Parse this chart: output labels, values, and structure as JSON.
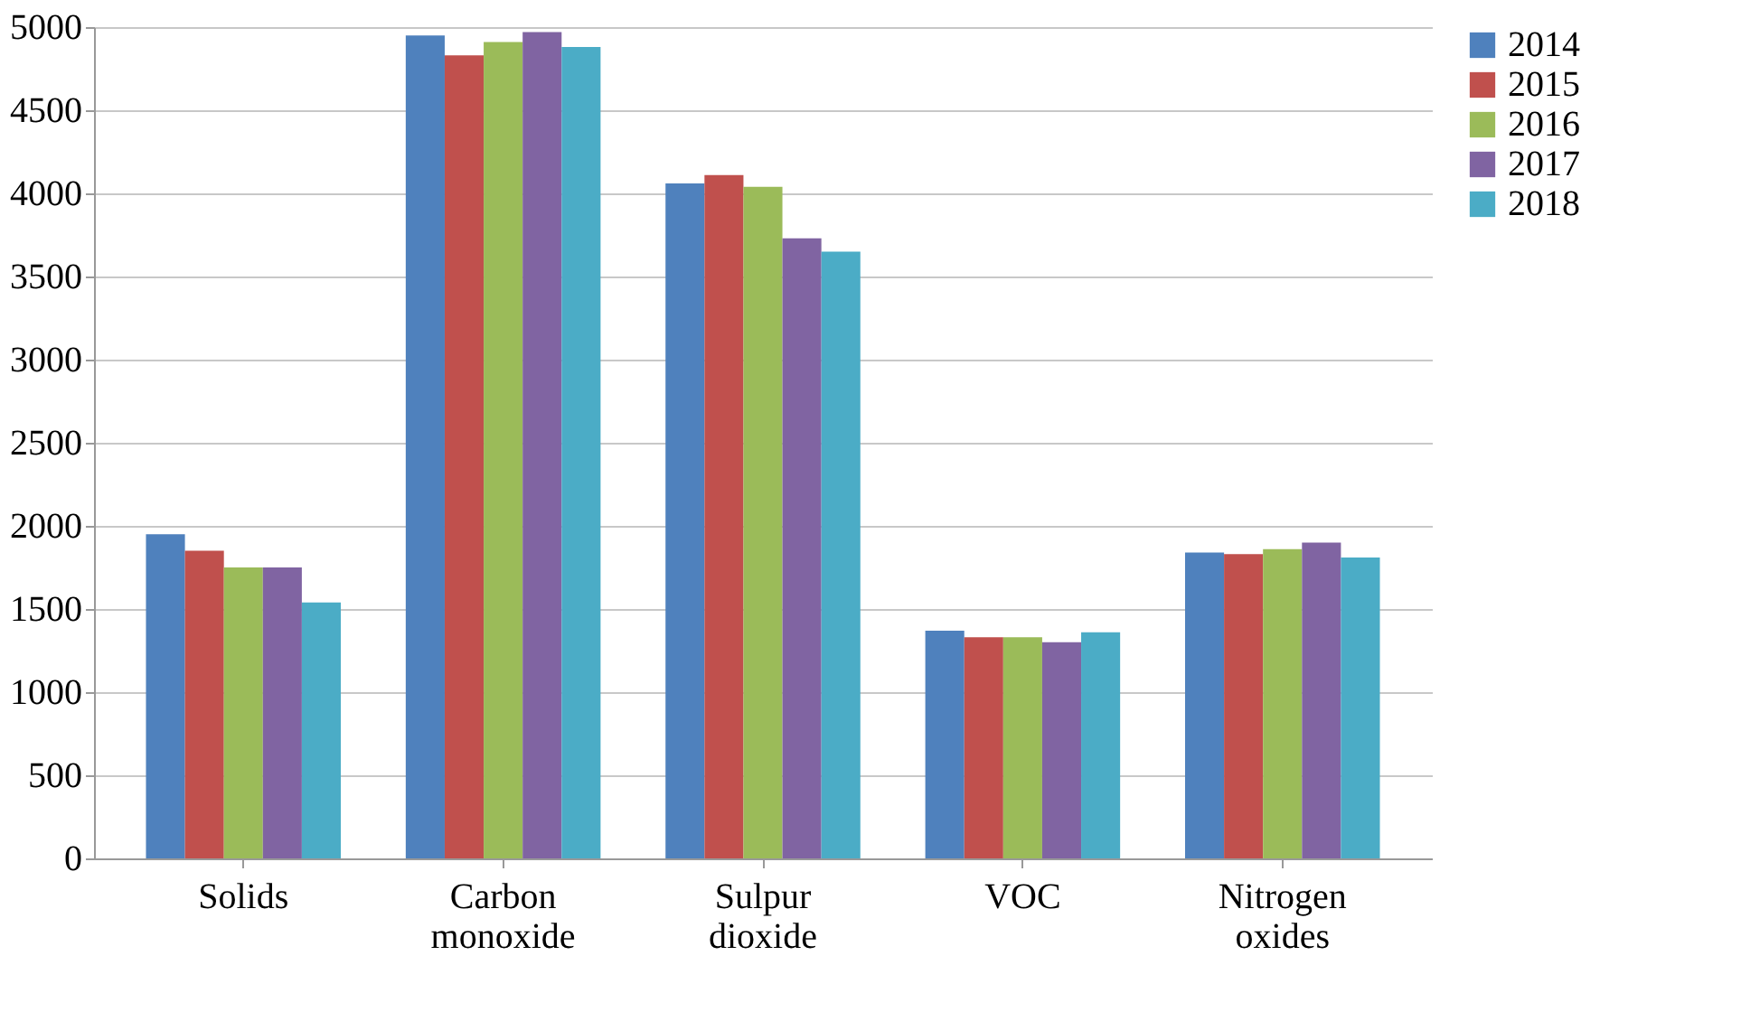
{
  "chart_data": {
    "type": "bar",
    "categories": [
      "Solids",
      "Carbon monoxide",
      "Sulpur dioxide",
      "VOC",
      "Nitrogen oxides"
    ],
    "series": [
      {
        "name": "2014",
        "color": "#4f81bd",
        "values": [
          1950,
          4950,
          4060,
          1370,
          1840
        ]
      },
      {
        "name": "2015",
        "color": "#c0504d",
        "values": [
          1850,
          4830,
          4110,
          1330,
          1830
        ]
      },
      {
        "name": "2016",
        "color": "#9bbb59",
        "values": [
          1750,
          4910,
          4040,
          1330,
          1860
        ]
      },
      {
        "name": "2017",
        "color": "#8064a2",
        "values": [
          1750,
          4970,
          3730,
          1300,
          1900
        ]
      },
      {
        "name": "2018",
        "color": "#4bacc6",
        "values": [
          1540,
          4880,
          3650,
          1360,
          1810
        ]
      }
    ],
    "ylim": [
      0,
      5000
    ],
    "yticks": [
      0,
      500,
      1000,
      1500,
      2000,
      2500,
      3000,
      3500,
      4000,
      4500,
      5000
    ],
    "grid": "y",
    "legend": "right"
  }
}
